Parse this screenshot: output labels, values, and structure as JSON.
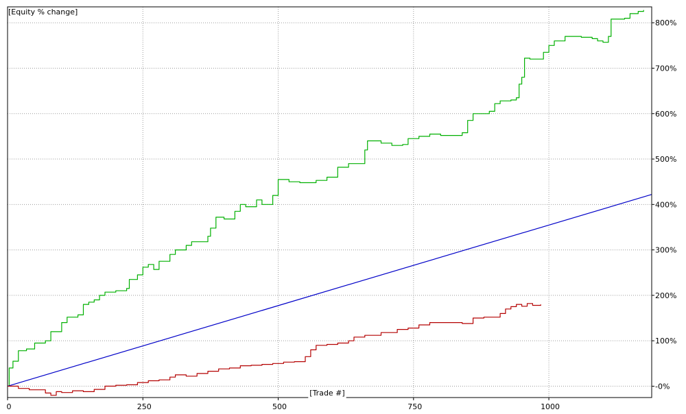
{
  "chart_data": {
    "type": "line",
    "title": "[Equity % change]",
    "xlabel": "[Trade #]",
    "ylabel": "",
    "xlim": [
      0,
      1190
    ],
    "ylim": [
      -25,
      835
    ],
    "x_ticks": [
      0,
      250,
      500,
      750,
      1000
    ],
    "x_tick_labels": [
      "0",
      "250",
      "500",
      "750",
      "1000"
    ],
    "y_ticks": [
      0,
      100,
      200,
      300,
      400,
      500,
      600,
      700,
      800
    ],
    "y_tick_labels": [
      "-0%",
      "100%",
      "200%",
      "300%",
      "400%",
      "500%",
      "600%",
      "700%",
      "800%"
    ],
    "grid": true,
    "legend": "none",
    "series": [
      {
        "color": "#00b000",
        "style": "step",
        "points": [
          [
            0,
            0
          ],
          [
            3,
            40
          ],
          [
            10,
            55
          ],
          [
            20,
            78
          ],
          [
            35,
            82
          ],
          [
            50,
            95
          ],
          [
            70,
            100
          ],
          [
            80,
            120
          ],
          [
            100,
            140
          ],
          [
            110,
            152
          ],
          [
            130,
            157
          ],
          [
            140,
            180
          ],
          [
            150,
            185
          ],
          [
            160,
            190
          ],
          [
            170,
            200
          ],
          [
            180,
            207
          ],
          [
            200,
            210
          ],
          [
            220,
            215
          ],
          [
            225,
            235
          ],
          [
            240,
            245
          ],
          [
            250,
            262
          ],
          [
            260,
            268
          ],
          [
            270,
            257
          ],
          [
            280,
            275
          ],
          [
            300,
            290
          ],
          [
            310,
            300
          ],
          [
            330,
            310
          ],
          [
            340,
            318
          ],
          [
            370,
            330
          ],
          [
            375,
            348
          ],
          [
            385,
            372
          ],
          [
            400,
            368
          ],
          [
            420,
            385
          ],
          [
            430,
            400
          ],
          [
            440,
            395
          ],
          [
            460,
            410
          ],
          [
            470,
            400
          ],
          [
            490,
            420
          ],
          [
            500,
            455
          ],
          [
            520,
            450
          ],
          [
            540,
            448
          ],
          [
            570,
            453
          ],
          [
            590,
            460
          ],
          [
            610,
            482
          ],
          [
            630,
            490
          ],
          [
            660,
            520
          ],
          [
            665,
            540
          ],
          [
            690,
            535
          ],
          [
            710,
            530
          ],
          [
            730,
            532
          ],
          [
            740,
            545
          ],
          [
            760,
            550
          ],
          [
            780,
            555
          ],
          [
            800,
            552
          ],
          [
            840,
            558
          ],
          [
            850,
            585
          ],
          [
            860,
            600
          ],
          [
            890,
            605
          ],
          [
            900,
            622
          ],
          [
            910,
            628
          ],
          [
            930,
            630
          ],
          [
            940,
            635
          ],
          [
            945,
            665
          ],
          [
            950,
            680
          ],
          [
            955,
            722
          ],
          [
            965,
            720
          ],
          [
            990,
            735
          ],
          [
            1000,
            750
          ],
          [
            1010,
            760
          ],
          [
            1030,
            770
          ],
          [
            1060,
            768
          ],
          [
            1080,
            765
          ],
          [
            1090,
            760
          ],
          [
            1100,
            757
          ],
          [
            1110,
            770
          ],
          [
            1115,
            808
          ],
          [
            1140,
            810
          ],
          [
            1150,
            820
          ],
          [
            1165,
            825
          ],
          [
            1175,
            828
          ]
        ]
      },
      {
        "color": "#0000c8",
        "style": "line",
        "points": [
          [
            0,
            0
          ],
          [
            1190,
            422
          ]
        ]
      },
      {
        "color": "#b40000",
        "style": "step",
        "points": [
          [
            0,
            0
          ],
          [
            20,
            -5
          ],
          [
            40,
            -8
          ],
          [
            70,
            -15
          ],
          [
            80,
            -20
          ],
          [
            90,
            -12
          ],
          [
            100,
            -14
          ],
          [
            120,
            -10
          ],
          [
            140,
            -12
          ],
          [
            160,
            -7
          ],
          [
            180,
            0
          ],
          [
            200,
            2
          ],
          [
            220,
            3
          ],
          [
            240,
            8
          ],
          [
            260,
            12
          ],
          [
            280,
            14
          ],
          [
            300,
            20
          ],
          [
            310,
            25
          ],
          [
            330,
            22
          ],
          [
            350,
            28
          ],
          [
            370,
            33
          ],
          [
            390,
            38
          ],
          [
            410,
            40
          ],
          [
            430,
            45
          ],
          [
            450,
            46
          ],
          [
            470,
            48
          ],
          [
            490,
            50
          ],
          [
            510,
            53
          ],
          [
            530,
            54
          ],
          [
            550,
            65
          ],
          [
            560,
            80
          ],
          [
            570,
            90
          ],
          [
            590,
            92
          ],
          [
            610,
            95
          ],
          [
            630,
            100
          ],
          [
            640,
            108
          ],
          [
            660,
            112
          ],
          [
            690,
            118
          ],
          [
            720,
            125
          ],
          [
            740,
            128
          ],
          [
            760,
            135
          ],
          [
            780,
            140
          ],
          [
            810,
            140
          ],
          [
            840,
            138
          ],
          [
            860,
            150
          ],
          [
            880,
            152
          ],
          [
            910,
            160
          ],
          [
            920,
            170
          ],
          [
            930,
            175
          ],
          [
            940,
            180
          ],
          [
            950,
            176
          ],
          [
            960,
            182
          ],
          [
            970,
            178
          ],
          [
            985,
            180
          ]
        ]
      }
    ]
  }
}
